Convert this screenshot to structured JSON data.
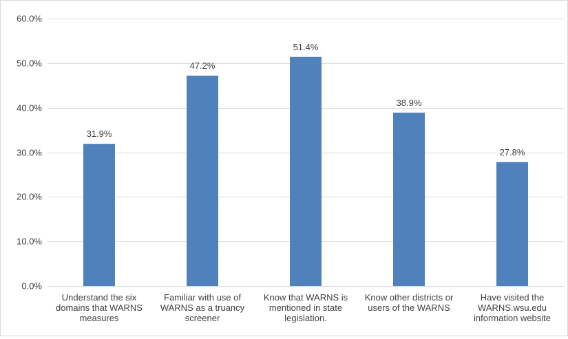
{
  "chart_data": {
    "type": "bar",
    "categories": [
      "Understand the six domains that WARNS measures",
      "Familiar with use of WARNS as a truancy screener",
      "Know that WARNS is mentioned in state legislation.",
      "Know other districts or users of the WARNS",
      "Have visited the WARNS.wsu.edu information website"
    ],
    "category_lines": [
      [
        "Understand the six",
        "domains that WARNS",
        "measures"
      ],
      [
        "Familiar with use of",
        "WARNS as a truancy",
        "screener"
      ],
      [
        "Know that WARNS is",
        "mentioned in state",
        "legislation."
      ],
      [
        "Know other districts or",
        "users of the WARNS"
      ],
      [
        "Have visited the",
        "WARNS.wsu.edu",
        "information website"
      ]
    ],
    "values": [
      31.9,
      47.2,
      51.4,
      38.9,
      27.8
    ],
    "value_labels": [
      "31.9%",
      "47.2%",
      "51.4%",
      "38.9%",
      "27.8%"
    ],
    "ylim": [
      0,
      60
    ],
    "yticks": [
      0,
      10,
      20,
      30,
      40,
      50,
      60
    ],
    "ytick_labels": [
      "0.0%",
      "10.0%",
      "20.0%",
      "30.0%",
      "40.0%",
      "50.0%",
      "60.0%"
    ],
    "title": "",
    "xlabel": "",
    "ylabel": "",
    "grid": true,
    "legend": "none",
    "bar_color": "#4f81bd",
    "grid_color": "#d9d9d9"
  }
}
